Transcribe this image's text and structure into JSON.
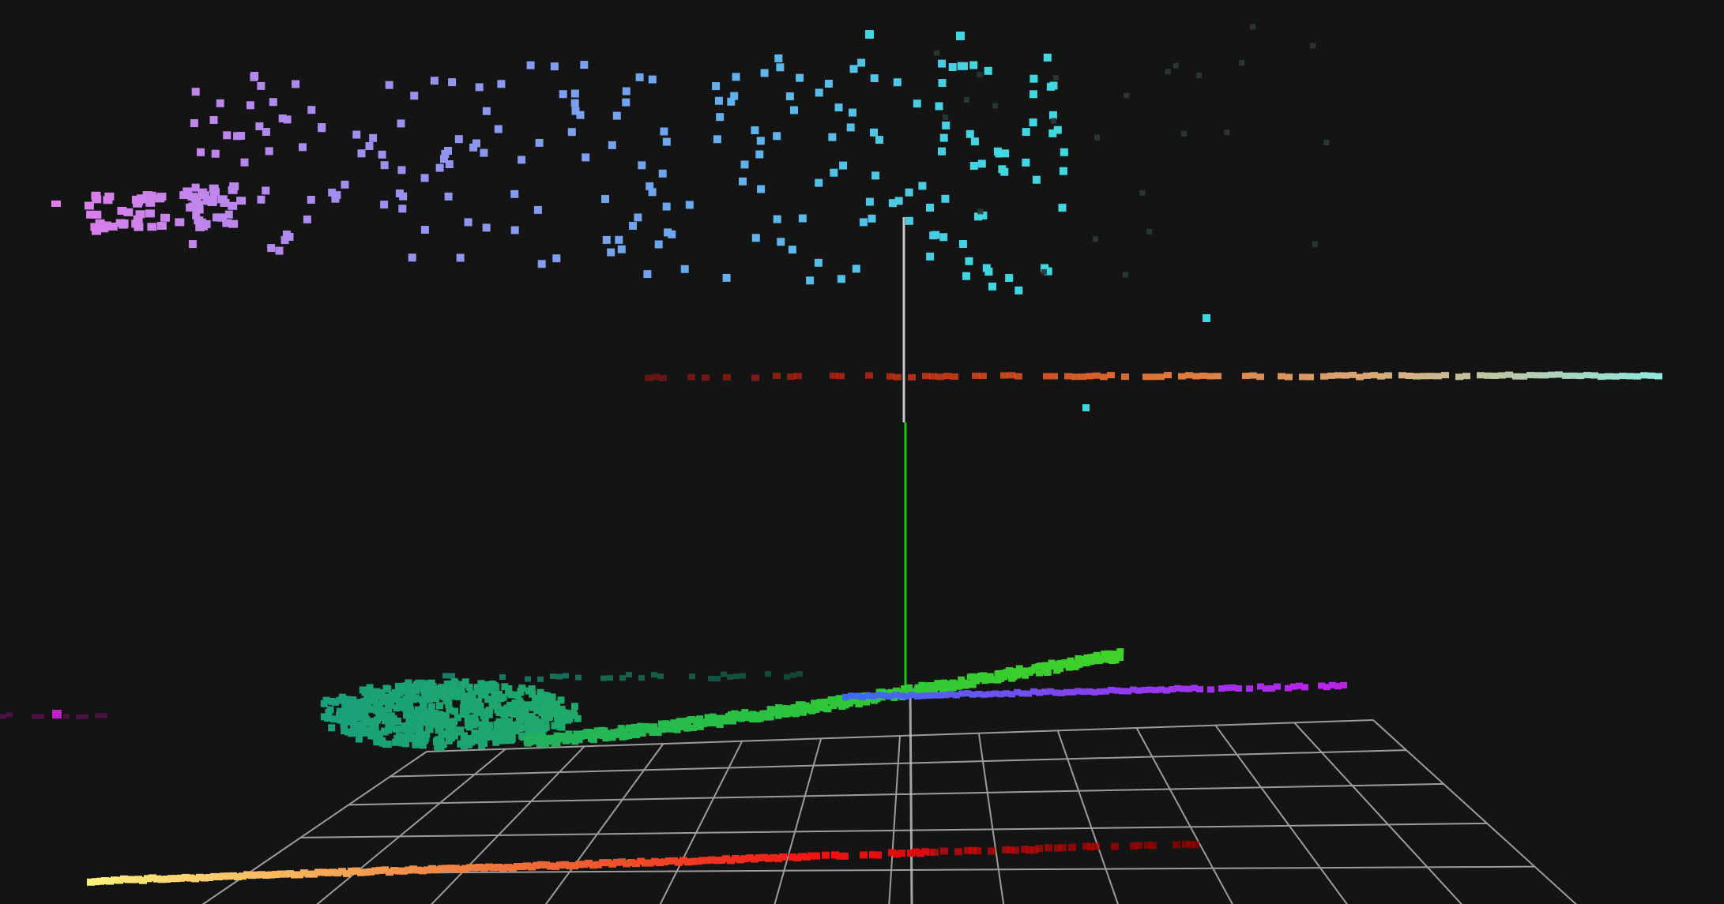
{
  "viewer": {
    "background_color": "#141414",
    "grid_color": "#b4b4b4",
    "axis_z_upper_color": "#c8c8c8",
    "axis_z_lower_color": "#22c21e"
  },
  "point_cloud": {
    "colormap": "rainbow",
    "point_style": "square",
    "segments": [
      {
        "name": "upper-scatter-cloud",
        "colors": [
          "#e07de8",
          "#9f8ef0",
          "#6aa8ee",
          "#40d8e0"
        ]
      },
      {
        "name": "mid-horizontal-line",
        "colors": [
          "#b01010",
          "#e03010",
          "#e07030",
          "#d8b080",
          "#90e8e0"
        ]
      },
      {
        "name": "lower-green-cluster",
        "colors": [
          "#1aa07a",
          "#22b060",
          "#2ec63a"
        ]
      },
      {
        "name": "lower-violet-line",
        "colors": [
          "#3a6ef0",
          "#8a40f0",
          "#c020e8"
        ]
      },
      {
        "name": "bottom-red-line",
        "colors": [
          "#fff080",
          "#f08040",
          "#f01010",
          "#900000"
        ]
      }
    ]
  },
  "scene_icons": {
    "grid": "ground-grid-icon",
    "axis": "z-axis-icon"
  }
}
